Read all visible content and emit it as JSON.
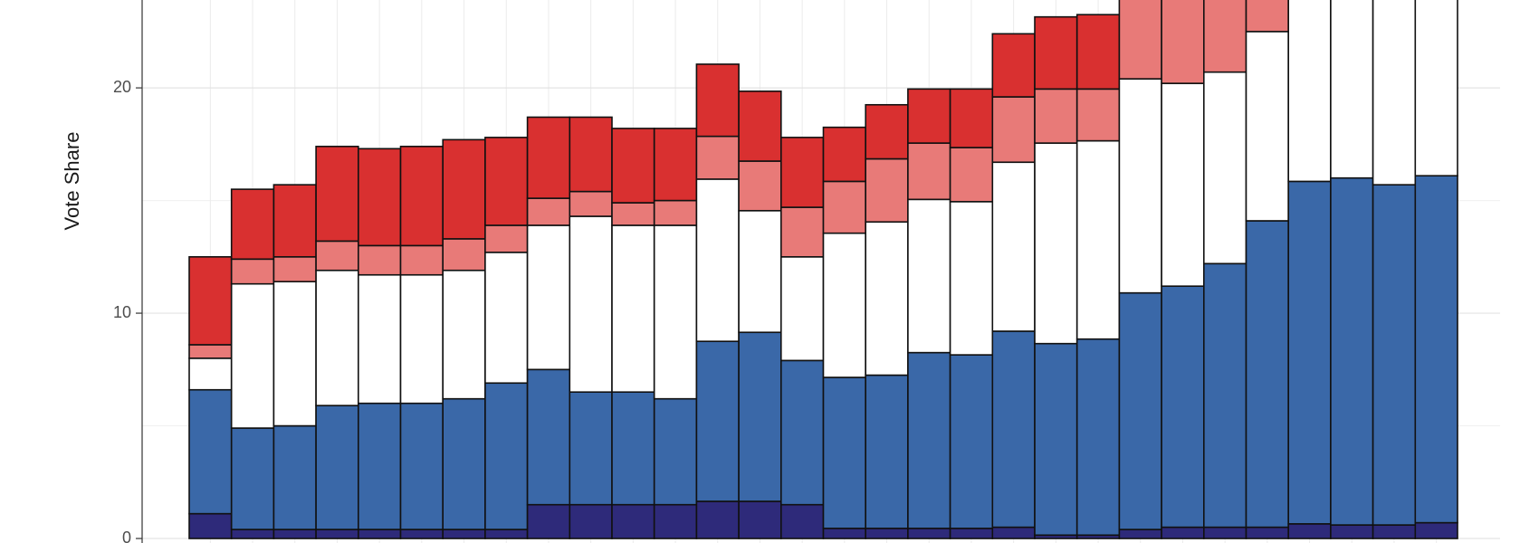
{
  "chart_data": {
    "type": "stacked_bar",
    "y_label": "Vote Share",
    "ylim": [
      -0.2,
      23.9
    ],
    "yticks": [
      0,
      10,
      20
    ],
    "grid": true,
    "series": [
      {
        "color": "#2e2a7a",
        "values": [
          1.1,
          0.4,
          0.4,
          0.4,
          0.4,
          0.4,
          0.4,
          0.4,
          1.5,
          1.5,
          1.5,
          1.5,
          1.65,
          1.65,
          1.5,
          0.45,
          0.45,
          0.45,
          0.45,
          0.5,
          0.15,
          0.15,
          0.4,
          0.5,
          0.5,
          0.5,
          0.65,
          0.6,
          0.6,
          0.7
        ]
      },
      {
        "color": "#3a68a8",
        "values": [
          5.5,
          4.5,
          4.6,
          5.5,
          5.6,
          5.6,
          5.8,
          6.5,
          6.0,
          5.0,
          5.0,
          4.7,
          7.1,
          7.5,
          6.4,
          6.7,
          6.8,
          7.8,
          7.7,
          8.7,
          8.5,
          8.7,
          10.5,
          10.7,
          11.7,
          13.6,
          15.2,
          15.4,
          15.1,
          15.4
        ]
      },
      {
        "color": "#ffffff",
        "values": [
          1.4,
          6.4,
          6.4,
          6.0,
          5.7,
          5.7,
          5.7,
          5.8,
          6.4,
          7.8,
          7.4,
          7.7,
          7.2,
          5.4,
          4.6,
          6.4,
          6.8,
          6.8,
          6.8,
          7.5,
          8.9,
          8.8,
          9.5,
          9.0,
          8.5,
          8.4,
          9.0,
          9.0,
          9.0,
          9.0
        ]
      },
      {
        "color": "#e87a78",
        "values": [
          0.6,
          1.1,
          1.1,
          1.3,
          1.3,
          1.3,
          1.4,
          1.2,
          1.2,
          1.1,
          1.0,
          1.1,
          1.9,
          2.2,
          2.2,
          2.3,
          2.8,
          2.5,
          2.4,
          2.9,
          2.4,
          2.3,
          3.6,
          3.8,
          3.5,
          1.5,
          null,
          null,
          null,
          null
        ]
      },
      {
        "color": "#d93030",
        "values": [
          3.9,
          3.1,
          3.2,
          4.2,
          4.3,
          4.4,
          4.4,
          3.9,
          3.6,
          3.3,
          3.3,
          3.2,
          3.2,
          3.1,
          3.1,
          2.4,
          2.4,
          2.4,
          2.6,
          2.8,
          3.2,
          3.3,
          null,
          null,
          null,
          null,
          null,
          null,
          null,
          null
        ]
      }
    ]
  }
}
